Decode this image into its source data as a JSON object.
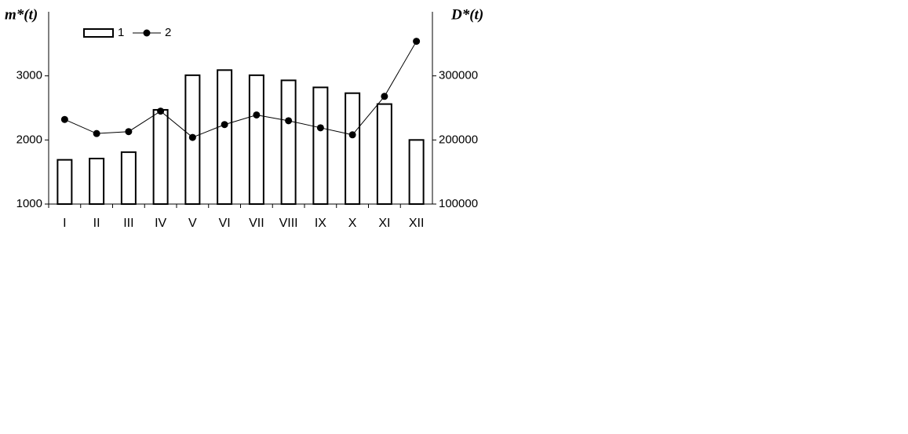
{
  "chart_data": {
    "type": "bar_line",
    "y_label": "m*(t)",
    "y2_label": "D*(t)",
    "categories": [
      "I",
      "II",
      "III",
      "IV",
      "V",
      "VI",
      "VII",
      "VIII",
      "IX",
      "X",
      "XI",
      "XII"
    ],
    "series": [
      {
        "name": "1",
        "type": "bar",
        "color": "#ffffff",
        "values": [
          1690,
          1710,
          1810,
          2470,
          3010,
          3090,
          3010,
          2930,
          2820,
          2730,
          2560,
          2000
        ]
      },
      {
        "name": "2",
        "type": "line",
        "axis": "y2",
        "color": "#000000",
        "values": [
          232000,
          210000,
          213000,
          245000,
          204000,
          224000,
          239000,
          230000,
          219000,
          208000,
          268000,
          354000
        ]
      }
    ],
    "ylim": [
      1000,
      4000
    ],
    "yticks": [
      1000,
      2000,
      3000
    ],
    "y2lim": [
      100000,
      400000
    ],
    "y2ticks": [
      100000,
      200000,
      300000
    ],
    "legend": "top-left"
  }
}
